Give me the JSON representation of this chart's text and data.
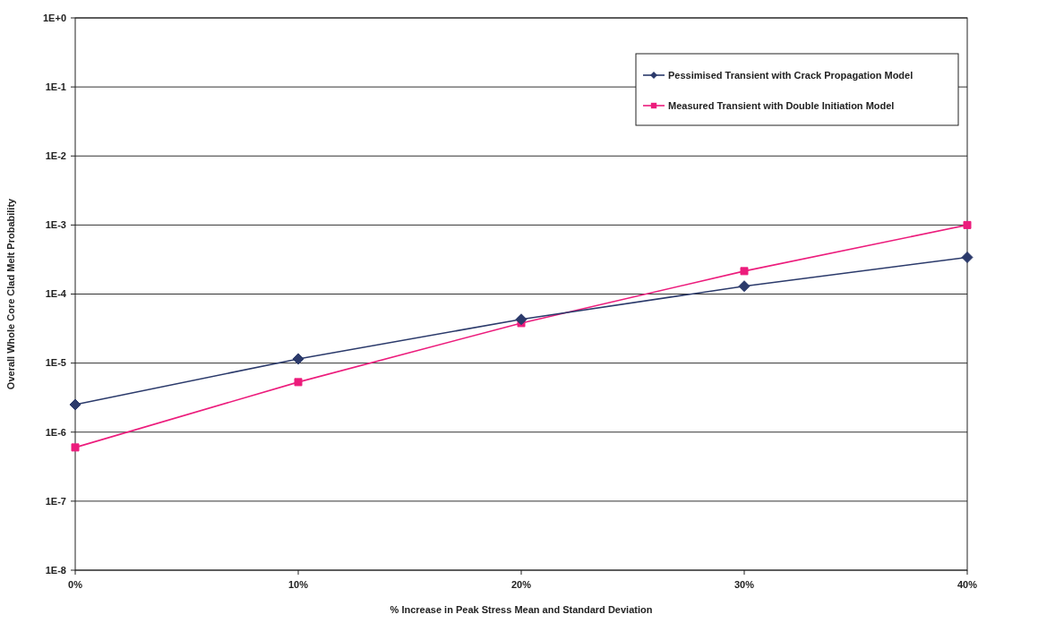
{
  "chart_data": {
    "type": "line",
    "xlabel": "% Increase in Peak Stress Mean and Standard Deviation",
    "ylabel": "Overall Whole Core Clad Melt Probability",
    "categories": [
      "0%",
      "10%",
      "20%",
      "30%",
      "40%"
    ],
    "series": [
      {
        "name": "Pessimised Transient with Crack Propagation Model",
        "color": "#2b3a6b",
        "marker": "diamond",
        "values": [
          2.5e-06,
          1.15e-05,
          4.3e-05,
          0.00013,
          0.00034
        ]
      },
      {
        "name": "Measured Transient with Double Initiation Model",
        "color": "#ec1c7c",
        "marker": "square",
        "values": [
          6e-07,
          5.3e-06,
          3.8e-05,
          0.000215,
          0.001
        ]
      }
    ],
    "log": "y",
    "ylim": [
      1e-08,
      1
    ],
    "yticks": [
      {
        "value": 1e-08,
        "label": "1E-8"
      },
      {
        "value": 1e-07,
        "label": "1E-7"
      },
      {
        "value": 1e-06,
        "label": "1E-6"
      },
      {
        "value": 1e-05,
        "label": "1E-5"
      },
      {
        "value": 0.0001,
        "label": "1E-4"
      },
      {
        "value": 0.001,
        "label": "1E-3"
      },
      {
        "value": 0.01,
        "label": "1E-2"
      },
      {
        "value": 0.1,
        "label": "1E-1"
      },
      {
        "value": 1,
        "label": "1E+0"
      }
    ],
    "grid": "y",
    "legend": "top right",
    "line_style": "solid"
  }
}
